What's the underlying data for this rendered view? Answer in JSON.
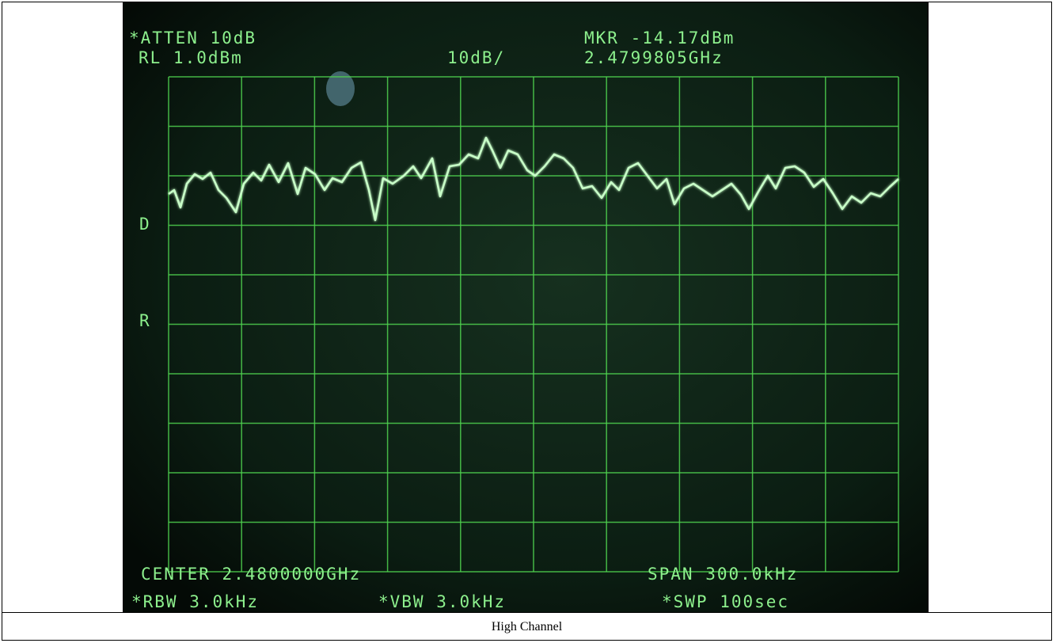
{
  "screen": {
    "atten": "*ATTEN 10dB",
    "ref_level": "RL 1.0dBm",
    "scale": "10dB/",
    "marker": "MKR -14.17dBm",
    "marker_freq": "2.4799805GHz",
    "label_d": "D",
    "label_r": "R",
    "center": "CENTER 2.4800000GHz",
    "span": "SPAN 300.0kHz",
    "rbw": "*RBW 3.0kHz",
    "vbw": "*VBW 3.0kHz",
    "sweep": "*SWP 100sec"
  },
  "caption": "High Channel"
}
